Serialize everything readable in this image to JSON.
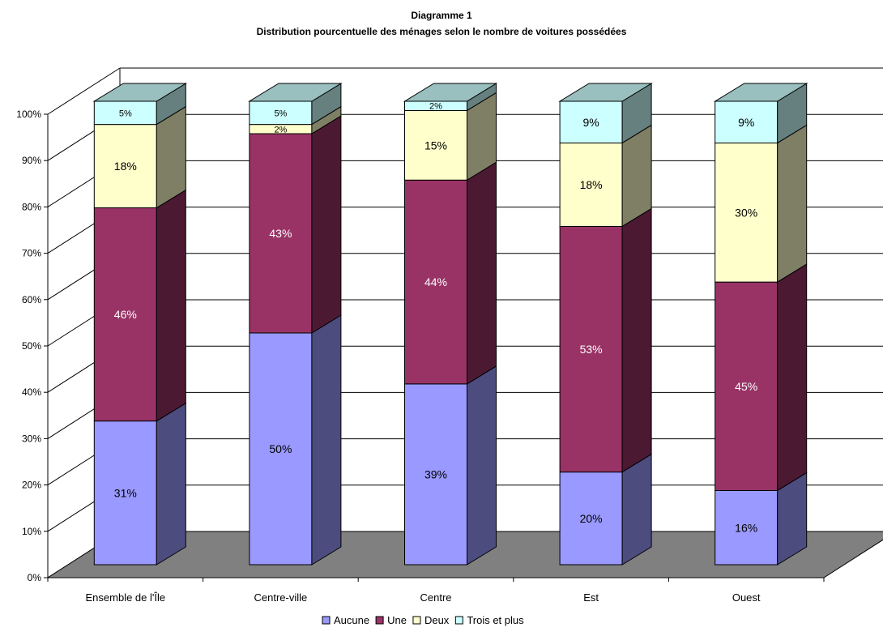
{
  "chart_data": {
    "type": "bar",
    "stacked": true,
    "three_d": true,
    "title": "Diagramme 1",
    "subtitle": "Distribution pourcentuelle des ménages selon le nombre de voitures possédées",
    "categories": [
      "Ensemble de l'Île",
      "Centre-ville",
      "Centre",
      "Est",
      "Ouest"
    ],
    "series": [
      {
        "name": "Aucune",
        "values": [
          31,
          50,
          39,
          20,
          16
        ],
        "labels": [
          "31%",
          "50%",
          "39%",
          "20%",
          "16%"
        ]
      },
      {
        "name": "Une",
        "values": [
          46,
          43,
          44,
          53,
          45
        ],
        "labels": [
          "46%",
          "43%",
          "44%",
          "53%",
          "45%"
        ]
      },
      {
        "name": "Deux",
        "values": [
          18,
          2,
          15,
          18,
          30
        ],
        "labels": [
          "18%",
          "2%",
          "15%",
          "18%",
          "30%"
        ]
      },
      {
        "name": "Trois et plus",
        "values": [
          5,
          5,
          2,
          9,
          9
        ],
        "labels": [
          "5%",
          "5%",
          "2%",
          "9%",
          "9%"
        ]
      }
    ],
    "yticks": [
      "0%",
      "10%",
      "20%",
      "30%",
      "40%",
      "50%",
      "60%",
      "70%",
      "80%",
      "90%",
      "100%"
    ],
    "ylim": [
      0,
      100
    ],
    "grid": true,
    "legend_position": "bottom",
    "colors": {
      "Aucune": {
        "front": "#9999ff",
        "side": "#4c4c7f",
        "top": "#7373bf"
      },
      "Une": {
        "front": "#993366",
        "side": "#4c1933",
        "top": "#73264c"
      },
      "Deux": {
        "front": "#ffffcc",
        "side": "#7f7f66",
        "top": "#bfbf99"
      },
      "Trois et plus": {
        "front": "#ccffff",
        "side": "#667f7f",
        "top": "#99bfbf"
      },
      "floor": "#808080",
      "grid": "#000000"
    }
  }
}
